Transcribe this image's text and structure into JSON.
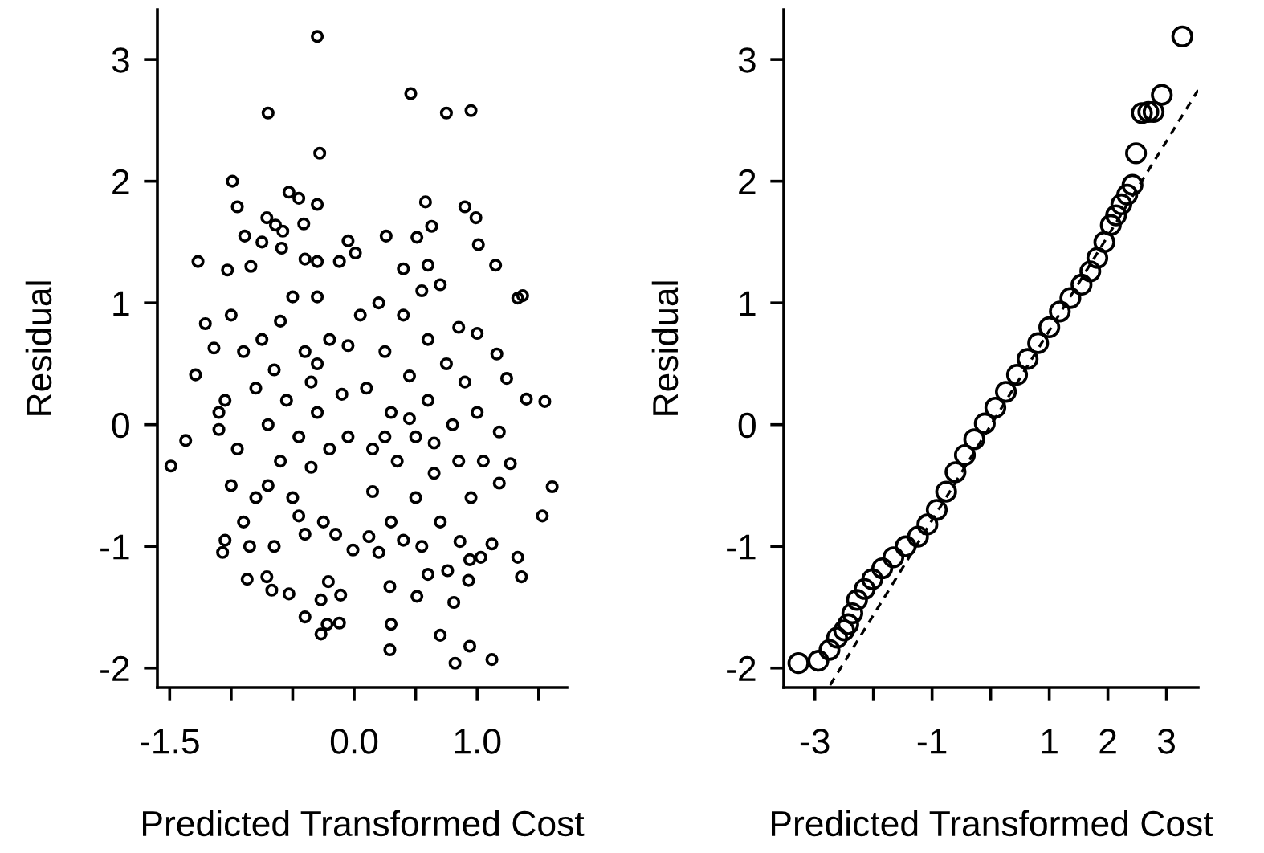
{
  "chart_data": [
    {
      "type": "scatter",
      "xlabel": "Predicted Transformed Cost",
      "ylabel": "Residual",
      "xlim": [
        -1.6,
        1.73
      ],
      "ylim": [
        -2.16,
        3.41
      ],
      "xticks": [
        -1.5,
        {
          "value": -1.0,
          "label": null
        },
        {
          "value": -0.5,
          "label": null
        },
        {
          "value": 0.0,
          "label": "0.0"
        },
        {
          "value": 0.5,
          "label": null
        },
        {
          "value": 1.0,
          "label": "1.0"
        },
        {
          "value": 1.5,
          "label": null
        }
      ],
      "yticks": [
        -2,
        -1,
        0,
        1,
        2,
        3
      ],
      "grid": false,
      "legend": false,
      "marker": "circle",
      "series": [
        {
          "color": "#000000",
          "x": [
            -0.3,
            -0.7,
            -0.28,
            0.46,
            0.75,
            0.95,
            -0.99,
            -0.95,
            -0.53,
            -0.45,
            -0.3,
            -0.71,
            -0.64,
            -0.41,
            -0.89,
            -0.75,
            -0.58,
            -0.59,
            -0.05,
            0.01,
            0.26,
            0.51,
            0.58,
            0.63,
            0.9,
            0.99,
            1.01,
            1.15,
            -1.27,
            -1.03,
            -0.84,
            -0.4,
            -0.3,
            -0.12,
            0.4,
            0.6,
            1.33,
            1.37,
            -1.21,
            -1.14,
            -1.29,
            -1.49,
            -1.37,
            -1.1,
            1.4,
            1.55,
            1.61,
            1.53,
            1.24,
            1.16,
            1.18,
            1.27,
            1.18,
            1.33,
            1.36,
            -1.07,
            -0.87,
            -0.71,
            -0.67,
            -0.53,
            -0.4,
            -0.27,
            -0.22,
            -0.12,
            -0.11,
            -0.27,
            -0.21,
            0.29,
            0.3,
            0.29,
            0.51,
            0.7,
            0.82,
            0.94,
            1.12,
            0.81,
            0.93,
            0.76,
            0.6,
            0.94,
            1.03,
            1.12,
            -0.01,
            0.12,
            0.2,
            0.86,
            -1.0,
            -0.9,
            -0.8,
            -0.7,
            -0.6,
            -0.5,
            -0.4,
            -0.3,
            -0.2,
            -0.95,
            -1.05,
            -1.0,
            -0.9,
            -0.8,
            -0.75,
            -0.65,
            -0.55,
            -0.45,
            -0.35,
            -0.25,
            -0.6,
            -0.4,
            -0.3,
            -0.2,
            -0.15,
            -0.85,
            -0.65,
            -0.5,
            -0.3,
            -1.05,
            -1.1,
            -0.7,
            -0.45,
            -0.35,
            -0.1,
            -0.05,
            -0.05,
            0.05,
            0.1,
            0.15,
            0.15,
            0.2,
            0.25,
            0.3,
            0.35,
            0.3,
            0.4,
            0.45,
            0.5,
            0.5,
            0.55,
            0.6,
            0.6,
            0.65,
            0.7,
            0.75,
            0.8,
            0.85,
            0.85,
            0.9,
            0.95,
            1.0,
            1.0,
            1.05,
            0.4,
            0.55,
            0.7,
            0.45,
            0.25,
            0.65
          ],
          "values": [
            3.19,
            2.56,
            2.23,
            2.72,
            2.56,
            2.58,
            2.0,
            1.79,
            1.91,
            1.86,
            1.81,
            1.7,
            1.64,
            1.65,
            1.55,
            1.5,
            1.59,
            1.45,
            1.51,
            1.41,
            1.55,
            1.54,
            1.83,
            1.63,
            1.79,
            1.7,
            1.48,
            1.31,
            1.34,
            1.27,
            1.3,
            1.36,
            1.34,
            1.34,
            1.28,
            1.31,
            1.04,
            1.06,
            0.83,
            0.63,
            0.41,
            -0.34,
            -0.13,
            -0.04,
            0.21,
            0.19,
            -0.51,
            -0.75,
            0.38,
            0.58,
            -0.06,
            -0.32,
            -0.48,
            -1.09,
            -1.25,
            -1.05,
            -1.27,
            -1.25,
            -1.36,
            -1.39,
            -1.58,
            -1.72,
            -1.64,
            -1.63,
            -1.4,
            -1.44,
            -1.29,
            -1.33,
            -1.64,
            -1.85,
            -1.41,
            -1.73,
            -1.96,
            -1.82,
            -1.93,
            -1.46,
            -1.28,
            -1.2,
            -1.23,
            -1.11,
            -1.09,
            -0.98,
            -1.03,
            -0.92,
            -1.05,
            -0.96,
            0.9,
            0.6,
            0.3,
            0.0,
            -0.3,
            -0.6,
            -0.9,
            0.5,
            0.7,
            -0.2,
            0.2,
            -0.5,
            -0.8,
            -0.6,
            0.7,
            0.45,
            0.2,
            -0.1,
            -0.35,
            -0.8,
            0.85,
            0.6,
            0.1,
            -0.2,
            -0.9,
            -1.0,
            -1.0,
            1.05,
            1.05,
            -0.95,
            0.1,
            -0.5,
            -0.75,
            0.35,
            0.25,
            -0.1,
            0.65,
            0.9,
            0.3,
            -0.2,
            -0.55,
            1.0,
            0.6,
            0.1,
            -0.3,
            -0.8,
            0.9,
            0.4,
            -0.1,
            -0.6,
            1.1,
            0.7,
            0.2,
            -0.4,
            -0.8,
            0.5,
            0.0,
            -0.3,
            0.8,
            0.35,
            -0.6,
            0.1,
            0.75,
            -0.3,
            -0.95,
            -1.0,
            1.15,
            0.05,
            -0.1,
            -0.15
          ]
        }
      ]
    },
    {
      "type": "scatter",
      "xlabel": "Predicted Transformed Cost",
      "ylabel": "Residual",
      "xlim": [
        -3.53,
        3.54
      ],
      "ylim": [
        -2.16,
        3.41
      ],
      "xticks": [
        -3,
        {
          "value": -2,
          "label": null
        },
        -1,
        {
          "value": 0,
          "label": null
        },
        1,
        2,
        3
      ],
      "yticks": [
        -2,
        -1,
        0,
        1,
        2,
        3
      ],
      "grid": false,
      "legend": false,
      "marker": "circle",
      "series": [
        {
          "color": "#000000",
          "x": [
            -3.28,
            -2.94,
            -2.75,
            -2.62,
            -2.5,
            -2.43,
            -2.36,
            -2.28,
            -2.15,
            -2.02,
            -1.85,
            -1.66,
            -1.45,
            -1.24,
            -1.08,
            -0.92,
            -0.76,
            -0.6,
            -0.44,
            -0.28,
            -0.1,
            0.08,
            0.26,
            0.45,
            0.63,
            0.81,
            1.0,
            1.18,
            1.36,
            1.55,
            1.7,
            1.82,
            1.94,
            2.05,
            2.14,
            2.23,
            2.33,
            2.42,
            2.48,
            2.58,
            2.69,
            2.78,
            2.92,
            3.27
          ],
          "values": [
            -1.96,
            -1.94,
            -1.85,
            -1.75,
            -1.69,
            -1.64,
            -1.55,
            -1.44,
            -1.35,
            -1.27,
            -1.18,
            -1.09,
            -1.0,
            -0.92,
            -0.82,
            -0.7,
            -0.55,
            -0.39,
            -0.25,
            -0.12,
            0.01,
            0.14,
            0.27,
            0.41,
            0.54,
            0.67,
            0.8,
            0.93,
            1.04,
            1.15,
            1.26,
            1.37,
            1.5,
            1.64,
            1.72,
            1.81,
            1.89,
            1.97,
            2.23,
            2.56,
            2.57,
            2.57,
            2.71,
            3.19
          ]
        },
        {
          "type": "line",
          "color": "#000000",
          "line_style": "dashed",
          "marker": "none",
          "x": [
            -2.74,
            3.54
          ],
          "values": [
            -2.14,
            2.75
          ]
        }
      ]
    }
  ]
}
